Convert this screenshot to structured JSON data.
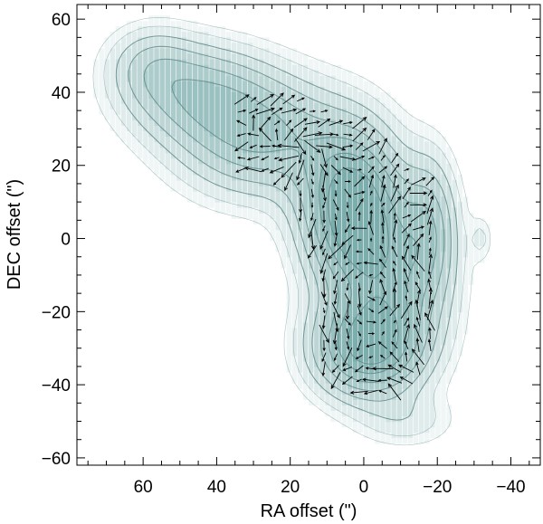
{
  "chart_data": {
    "type": "vector-field-contour",
    "title": "",
    "xlabel": "RA offset (\")",
    "ylabel": "DEC offset (\")",
    "xlim": [
      78,
      -48
    ],
    "ylim": [
      -62,
      64
    ],
    "xticks": [
      60,
      40,
      20,
      0,
      -20,
      -40
    ],
    "yticks": [
      60,
      40,
      20,
      0,
      -20,
      -40,
      -60
    ],
    "xtick_labels": [
      "60",
      "40",
      "20",
      "0",
      "−20",
      "−40"
    ],
    "ytick_labels": [
      "60",
      "40",
      "20",
      "0",
      "−20",
      "−40",
      "−60"
    ],
    "grid": false,
    "colors": {
      "fill_base": "#2e7d7d",
      "contour_line": "#5f8a8a",
      "vector": "#000000",
      "frame": "#000000"
    },
    "intensity_components": [
      {
        "x": 3,
        "y": 8,
        "sx": 9,
        "sy": 14,
        "amp": 1.0
      },
      {
        "x": -1,
        "y": -30,
        "sx": 10,
        "sy": 9,
        "amp": 0.82
      },
      {
        "x": 28,
        "y": 28,
        "sx": 15,
        "sy": 11,
        "amp": 0.55
      },
      {
        "x": 46,
        "y": 40,
        "sx": 13,
        "sy": 9,
        "amp": 0.42
      },
      {
        "x": 58,
        "y": 48,
        "sx": 8,
        "sy": 7,
        "amp": 0.22
      },
      {
        "x": -8,
        "y": -12,
        "sx": 10,
        "sy": 14,
        "amp": 0.5
      },
      {
        "x": -18,
        "y": 4,
        "sx": 5,
        "sy": 13,
        "amp": 0.38
      },
      {
        "x": -12,
        "y": -50,
        "sx": 9,
        "sy": 5,
        "amp": 0.14
      },
      {
        "x": -32,
        "y": 0,
        "sx": 2,
        "sy": 4,
        "amp": 0.12
      }
    ],
    "contour_levels": [
      0.07,
      0.12,
      0.2,
      0.3,
      0.42,
      0.55,
      0.7,
      0.85
    ],
    "vector_region": {
      "x_range": [
        36,
        -18
      ],
      "y_range": [
        -42,
        41
      ],
      "spacing": 3.2
    }
  }
}
